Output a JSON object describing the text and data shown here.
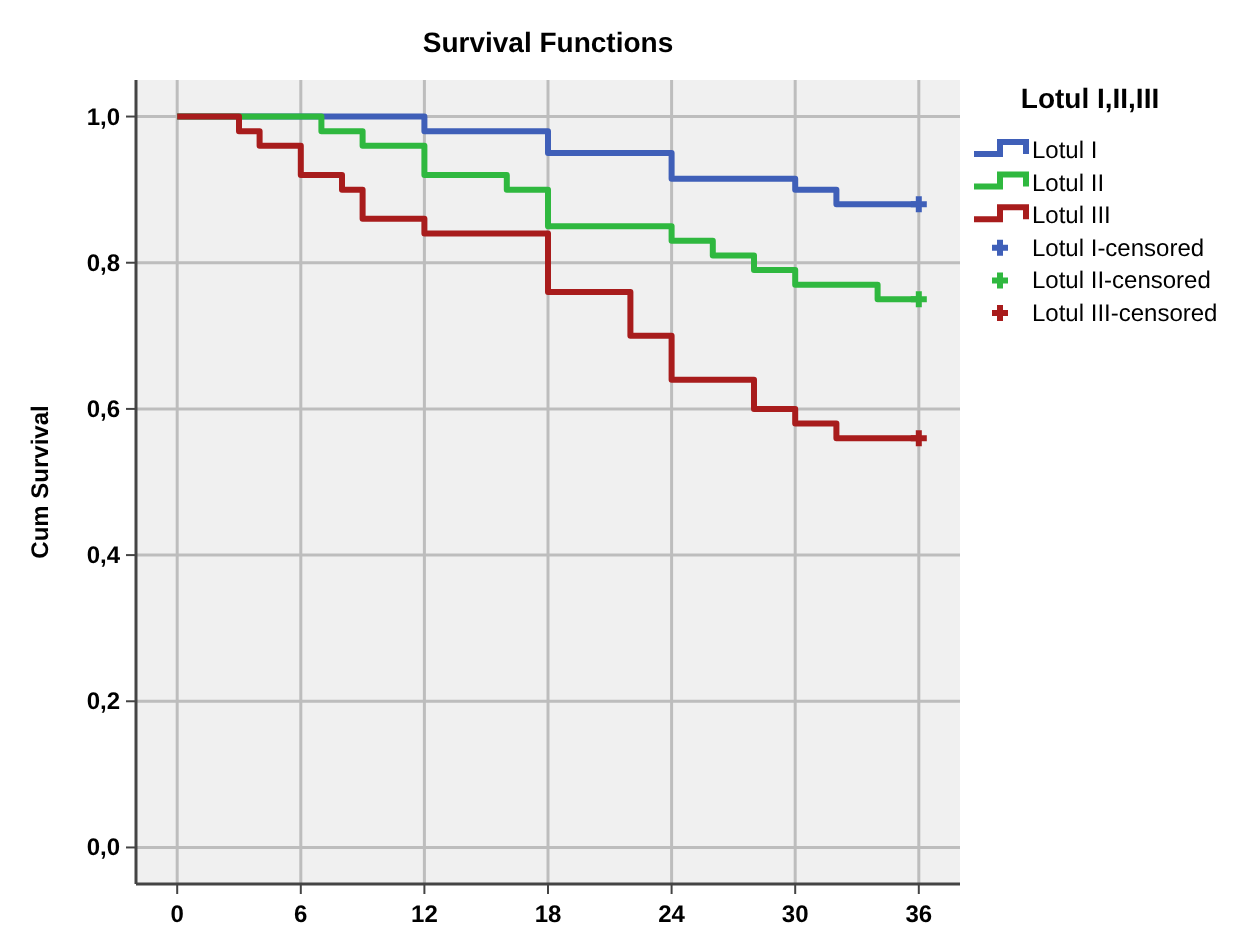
{
  "chart_data": {
    "type": "step",
    "title": "Survival Functions",
    "ylabel": "Cum Survival",
    "legend_title": "Lotul I,II,III",
    "legend": "right",
    "grid": true,
    "xlim": [
      -2,
      38
    ],
    "ylim": [
      -0.05,
      1.05
    ],
    "xticks": [
      0,
      6,
      12,
      18,
      24,
      30,
      36
    ],
    "yticks": [
      {
        "value": 0,
        "label": "0,0"
      },
      {
        "value": 0.2,
        "label": "0,2"
      },
      {
        "value": 0.4,
        "label": "0,4"
      },
      {
        "value": 0.6,
        "label": "0,6"
      },
      {
        "value": 0.8,
        "label": "0,8"
      },
      {
        "value": 1,
        "label": "1,0"
      }
    ],
    "series": [
      {
        "name": "Lotul I",
        "color": "#3f5fb8",
        "marker": "none",
        "x": [
          0,
          12,
          18,
          24,
          30,
          32,
          36
        ],
        "values": [
          1,
          0.98,
          0.95,
          0.915,
          0.9,
          0.88,
          0.88
        ]
      },
      {
        "name": "Lotul II",
        "color": "#2fb83f",
        "marker": "none",
        "x": [
          0,
          7,
          9,
          12,
          16,
          18,
          24,
          26,
          28,
          30,
          34,
          36
        ],
        "values": [
          1,
          0.98,
          0.96,
          0.92,
          0.9,
          0.85,
          0.83,
          0.81,
          0.79,
          0.77,
          0.75,
          0.75
        ]
      },
      {
        "name": "Lotul III",
        "color": "#a81c1c",
        "marker": "none",
        "x": [
          0,
          3,
          4,
          6,
          8,
          9,
          12,
          18,
          22,
          24,
          28,
          30,
          32,
          36
        ],
        "values": [
          1,
          0.98,
          0.96,
          0.92,
          0.9,
          0.86,
          0.84,
          0.76,
          0.7,
          0.64,
          0.6,
          0.58,
          0.56,
          0.56
        ]
      },
      {
        "name": "Lotul I-censored",
        "type": "scatter",
        "color": "#3f5fb8",
        "marker": "cross",
        "x": [
          36
        ],
        "values": [
          0.88
        ]
      },
      {
        "name": "Lotul II-censored",
        "type": "scatter",
        "color": "#2fb83f",
        "marker": "cross",
        "x": [
          36
        ],
        "values": [
          0.75
        ]
      },
      {
        "name": "Lotul III-censored",
        "type": "scatter",
        "color": "#a81c1c",
        "marker": "cross",
        "x": [
          36
        ],
        "values": [
          0.56
        ]
      }
    ]
  }
}
